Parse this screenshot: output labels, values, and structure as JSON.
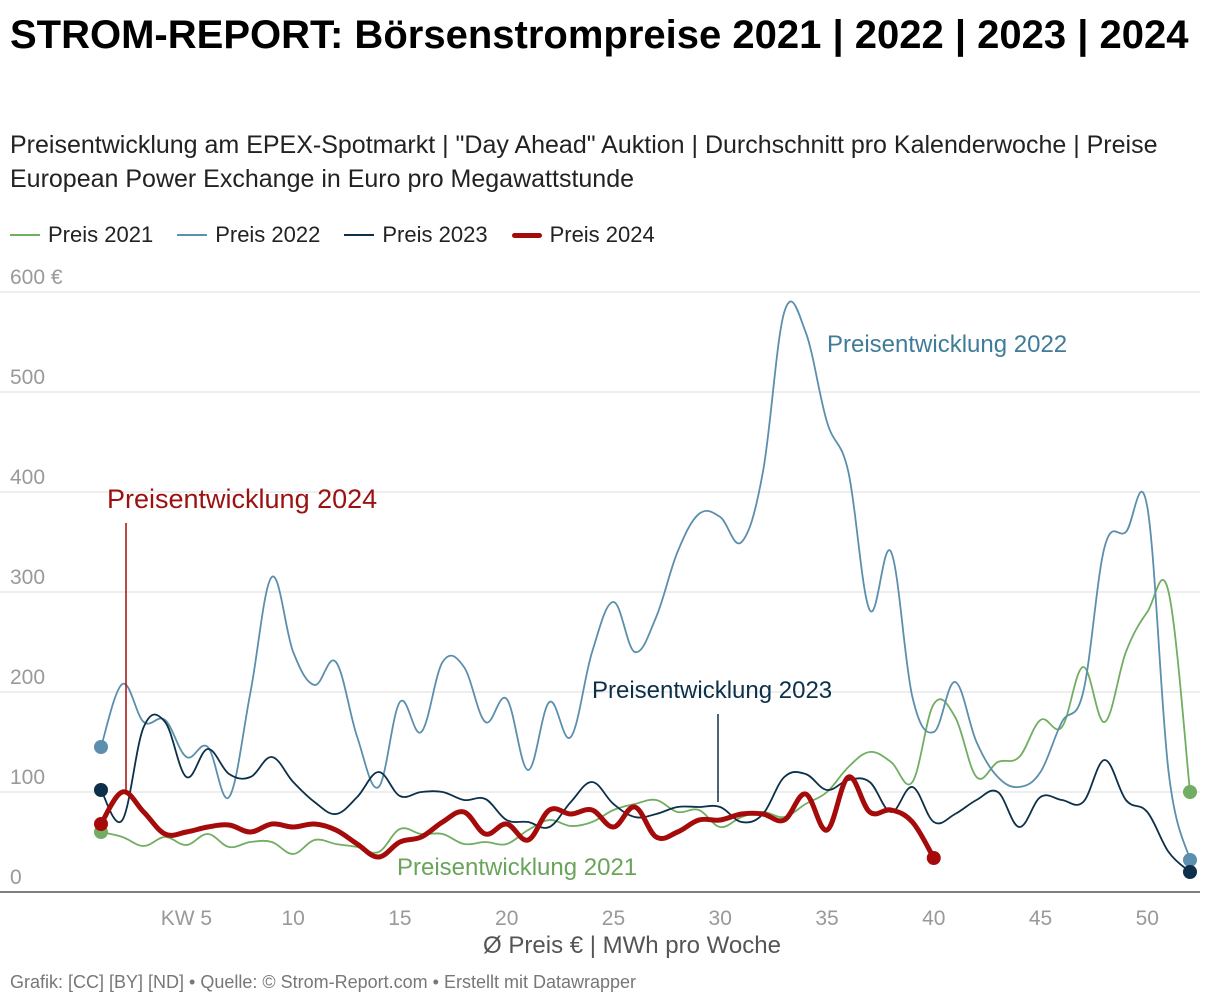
{
  "title": "STROM-REPORT: Börsenstrompreise 2021 | 2022 | 2023 | 2024",
  "subtitle": "Preisentwicklung am EPEX-Spotmarkt | \"Day Ahead\" Auktion | Durchschnitt pro Kalenderwoche | Preise European Power Exchange in Euro pro Megawattstunde",
  "footer": "Grafik: [CC] [BY] [ND]  • Quelle: © Strom-Report.com • Erstellt mit Datawrapper",
  "colors": {
    "2021": "#71ad62",
    "2022": "#5b8fad",
    "2023": "#0c3049",
    "2024": "#a50b0b",
    "grid": "#dddddd",
    "axis_text": "#999999"
  },
  "chart_data": {
    "type": "line",
    "xlabel": "Ø Preis € | MWh pro Woche",
    "ylabel": "",
    "xlim": [
      1,
      52
    ],
    "ylim": [
      0,
      600
    ],
    "grid": true,
    "legend_position": "top-left",
    "x_ticks": [
      {
        "value": 5,
        "label": "KW 5"
      },
      {
        "value": 10,
        "label": "10"
      },
      {
        "value": 15,
        "label": "15"
      },
      {
        "value": 20,
        "label": "20"
      },
      {
        "value": 25,
        "label": "25"
      },
      {
        "value": 30,
        "label": "30"
      },
      {
        "value": 35,
        "label": "35"
      },
      {
        "value": 40,
        "label": "40"
      },
      {
        "value": 45,
        "label": "45"
      },
      {
        "value": 50,
        "label": "50"
      }
    ],
    "y_ticks": [
      {
        "value": 0,
        "label": "0"
      },
      {
        "value": 100,
        "label": "100"
      },
      {
        "value": 200,
        "label": "200"
      },
      {
        "value": 300,
        "label": "300"
      },
      {
        "value": 400,
        "label": "400"
      },
      {
        "value": 500,
        "label": "500"
      },
      {
        "value": 600,
        "label": "600 €"
      }
    ],
    "series": [
      {
        "key": "2021",
        "name": "Preis 2021",
        "stroke_width": 1.8,
        "weeks": [
          1,
          2,
          3,
          4,
          5,
          6,
          7,
          8,
          9,
          10,
          11,
          12,
          13,
          14,
          15,
          16,
          17,
          18,
          19,
          20,
          21,
          22,
          23,
          24,
          25,
          26,
          27,
          28,
          29,
          30,
          31,
          32,
          33,
          34,
          35,
          36,
          37,
          38,
          39,
          40,
          41,
          42,
          43,
          44,
          45,
          46,
          47,
          48,
          49,
          50,
          51,
          52
        ],
        "values": [
          60,
          55,
          46,
          55,
          47,
          58,
          45,
          50,
          50,
          38,
          52,
          48,
          45,
          40,
          63,
          58,
          58,
          48,
          50,
          48,
          62,
          72,
          66,
          70,
          82,
          88,
          92,
          80,
          82,
          65,
          75,
          80,
          75,
          88,
          100,
          125,
          140,
          130,
          110,
          188,
          175,
          115,
          130,
          135,
          172,
          165,
          225,
          170,
          240,
          280,
          300,
          100
        ]
      },
      {
        "key": "2022",
        "name": "Preis 2022",
        "stroke_width": 1.8,
        "weeks": [
          1,
          2,
          3,
          4,
          5,
          6,
          7,
          8,
          9,
          10,
          11,
          12,
          13,
          14,
          15,
          16,
          17,
          18,
          19,
          20,
          21,
          22,
          23,
          24,
          25,
          26,
          27,
          28,
          29,
          30,
          31,
          32,
          33,
          34,
          35,
          36,
          37,
          38,
          39,
          40,
          41,
          42,
          43,
          44,
          45,
          46,
          47,
          48,
          49,
          50,
          51,
          52
        ],
        "values": [
          145,
          208,
          170,
          172,
          135,
          145,
          95,
          200,
          315,
          240,
          207,
          230,
          155,
          105,
          190,
          160,
          230,
          225,
          170,
          193,
          122,
          190,
          155,
          240,
          290,
          240,
          275,
          340,
          378,
          375,
          350,
          420,
          580,
          560,
          470,
          420,
          282,
          340,
          195,
          160,
          210,
          150,
          115,
          105,
          120,
          170,
          200,
          345,
          360,
          385,
          120,
          32
        ]
      },
      {
        "key": "2023",
        "name": "Preis 2023",
        "stroke_width": 1.8,
        "weeks": [
          1,
          2,
          3,
          4,
          5,
          6,
          7,
          8,
          9,
          10,
          11,
          12,
          13,
          14,
          15,
          16,
          17,
          18,
          19,
          20,
          21,
          22,
          23,
          24,
          25,
          26,
          27,
          28,
          29,
          30,
          31,
          32,
          33,
          34,
          35,
          36,
          37,
          38,
          39,
          40,
          41,
          42,
          43,
          44,
          45,
          46,
          47,
          48,
          49,
          50,
          51,
          52
        ],
        "values": [
          102,
          72,
          165,
          170,
          115,
          143,
          118,
          115,
          135,
          110,
          90,
          78,
          95,
          120,
          96,
          100,
          100,
          92,
          93,
          72,
          70,
          65,
          90,
          110,
          88,
          75,
          78,
          85,
          85,
          85,
          70,
          78,
          115,
          118,
          102,
          112,
          110,
          80,
          105,
          70,
          78,
          92,
          100,
          65,
          95,
          92,
          90,
          132,
          92,
          80,
          40,
          20
        ]
      },
      {
        "key": "2024",
        "name": "Preis 2024",
        "stroke_width": 5,
        "weeks": [
          1,
          2,
          3,
          4,
          5,
          6,
          7,
          8,
          9,
          10,
          11,
          12,
          13,
          14,
          15,
          16,
          17,
          18,
          19,
          20,
          21,
          22,
          23,
          24,
          25,
          26,
          27,
          28,
          29,
          30,
          31,
          32,
          33,
          34,
          35,
          36,
          37,
          38,
          39,
          40
        ],
        "values": [
          68,
          100,
          80,
          58,
          60,
          65,
          67,
          60,
          68,
          65,
          68,
          62,
          48,
          35,
          50,
          55,
          70,
          80,
          58,
          68,
          52,
          82,
          78,
          82,
          65,
          85,
          55,
          60,
          72,
          72,
          78,
          78,
          72,
          98,
          62,
          115,
          80,
          82,
          70,
          34
        ]
      }
    ],
    "annotations": [
      {
        "series": "2024",
        "text": "Preisentwicklung 2024",
        "x": 2.3,
        "y": 98
      },
      {
        "series": "2022",
        "text": "Preisentwicklung 2022",
        "x": 34.5,
        "y": 548
      },
      {
        "series": "2023",
        "text": "Preisentwicklung 2023",
        "x": 30,
        "y": 90
      },
      {
        "series": "2021",
        "text": "Preisentwicklung 2021",
        "x": 13.8,
        "y": 25
      }
    ]
  }
}
